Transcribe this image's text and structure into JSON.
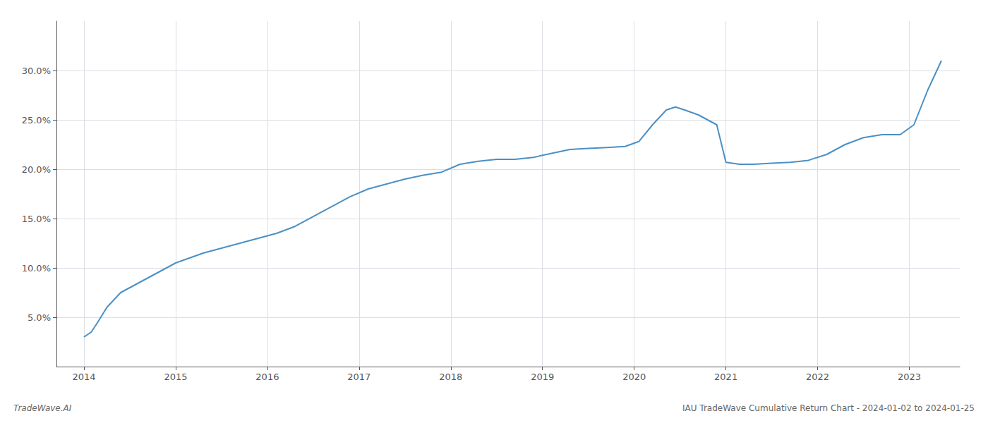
{
  "chart_data": {
    "type": "line",
    "title": "IAU TradeWave Cumulative Return Chart - 2024-01-02 to 2024-01-25",
    "annotations": [
      "TradeWave.AI"
    ],
    "color": "#4a90c4",
    "grid": true,
    "x": [
      2014.0,
      2014.08,
      2014.15,
      2014.25,
      2014.4,
      2014.6,
      2014.8,
      2015.0,
      2015.15,
      2015.3,
      2015.5,
      2015.7,
      2015.9,
      2016.1,
      2016.3,
      2016.5,
      2016.7,
      2016.9,
      2017.1,
      2017.3,
      2017.5,
      2017.7,
      2017.9,
      2018.1,
      2018.3,
      2018.5,
      2018.7,
      2018.9,
      2019.1,
      2019.3,
      2019.5,
      2019.7,
      2019.9,
      2020.05,
      2020.2,
      2020.35,
      2020.45,
      2020.55,
      2020.7,
      2020.9,
      2021.0,
      2021.15,
      2021.3,
      2021.5,
      2021.7,
      2021.9,
      2022.1,
      2022.3,
      2022.5,
      2022.7,
      2022.9,
      2023.05,
      2023.2,
      2023.35
    ],
    "values": [
      3.0,
      3.5,
      4.5,
      6.0,
      7.5,
      8.5,
      9.5,
      10.5,
      11.0,
      11.5,
      12.0,
      12.5,
      13.0,
      13.5,
      14.2,
      15.2,
      16.2,
      17.2,
      18.0,
      18.5,
      19.0,
      19.4,
      19.7,
      20.5,
      20.8,
      21.0,
      21.0,
      21.2,
      21.6,
      22.0,
      22.1,
      22.2,
      22.3,
      22.8,
      24.5,
      26.0,
      26.3,
      26.0,
      25.5,
      24.5,
      20.7,
      20.5,
      20.5,
      20.6,
      20.7,
      20.9,
      21.5,
      22.5,
      23.2,
      23.5,
      23.5,
      24.5,
      28.0,
      31.0
    ],
    "xlim": [
      2013.7,
      2023.55
    ],
    "xticks": [
      2014,
      2015,
      2016,
      2017,
      2018,
      2019,
      2020,
      2021,
      2022,
      2023
    ],
    "ylim": [
      0,
      35
    ],
    "yticks": [
      {
        "value": 5.0,
        "label": "5.0%"
      },
      {
        "value": 10.0,
        "label": "10.0%"
      },
      {
        "value": 15.0,
        "label": "15.0%"
      },
      {
        "value": 20.0,
        "label": "20.0%"
      },
      {
        "value": 25.0,
        "label": "25.0%"
      },
      {
        "value": 30.0,
        "label": "30.0%"
      }
    ]
  }
}
